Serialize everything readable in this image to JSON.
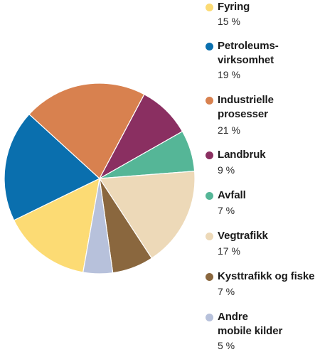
{
  "chart_data": {
    "type": "pie",
    "unit": "%",
    "slices": [
      {
        "label": "Fyring",
        "value": 15,
        "value_label": "15 %",
        "color": "#fcdb74"
      },
      {
        "label": "Petroleums-\nvirksomhet",
        "value": 19,
        "value_label": "19 %",
        "color": "#0a6fae"
      },
      {
        "label": "Industrielle\nprosesser",
        "value": 21,
        "value_label": "21 %",
        "color": "#d8814f"
      },
      {
        "label": "Landbruk",
        "value": 9,
        "value_label": "9 %",
        "color": "#8a2f61"
      },
      {
        "label": "Avfall",
        "value": 7,
        "value_label": "7 %",
        "color": "#55b697"
      },
      {
        "label": "Vegtrafikk",
        "value": 17,
        "value_label": "17 %",
        "color": "#edd9b8"
      },
      {
        "label": "Kysttrafikk og fiske",
        "value": 7,
        "value_label": "7 %",
        "color": "#8a673e"
      },
      {
        "label": "Andre\nmobile kilder",
        "value": 5,
        "value_label": "5 %",
        "color": "#b7c1db"
      }
    ]
  }
}
